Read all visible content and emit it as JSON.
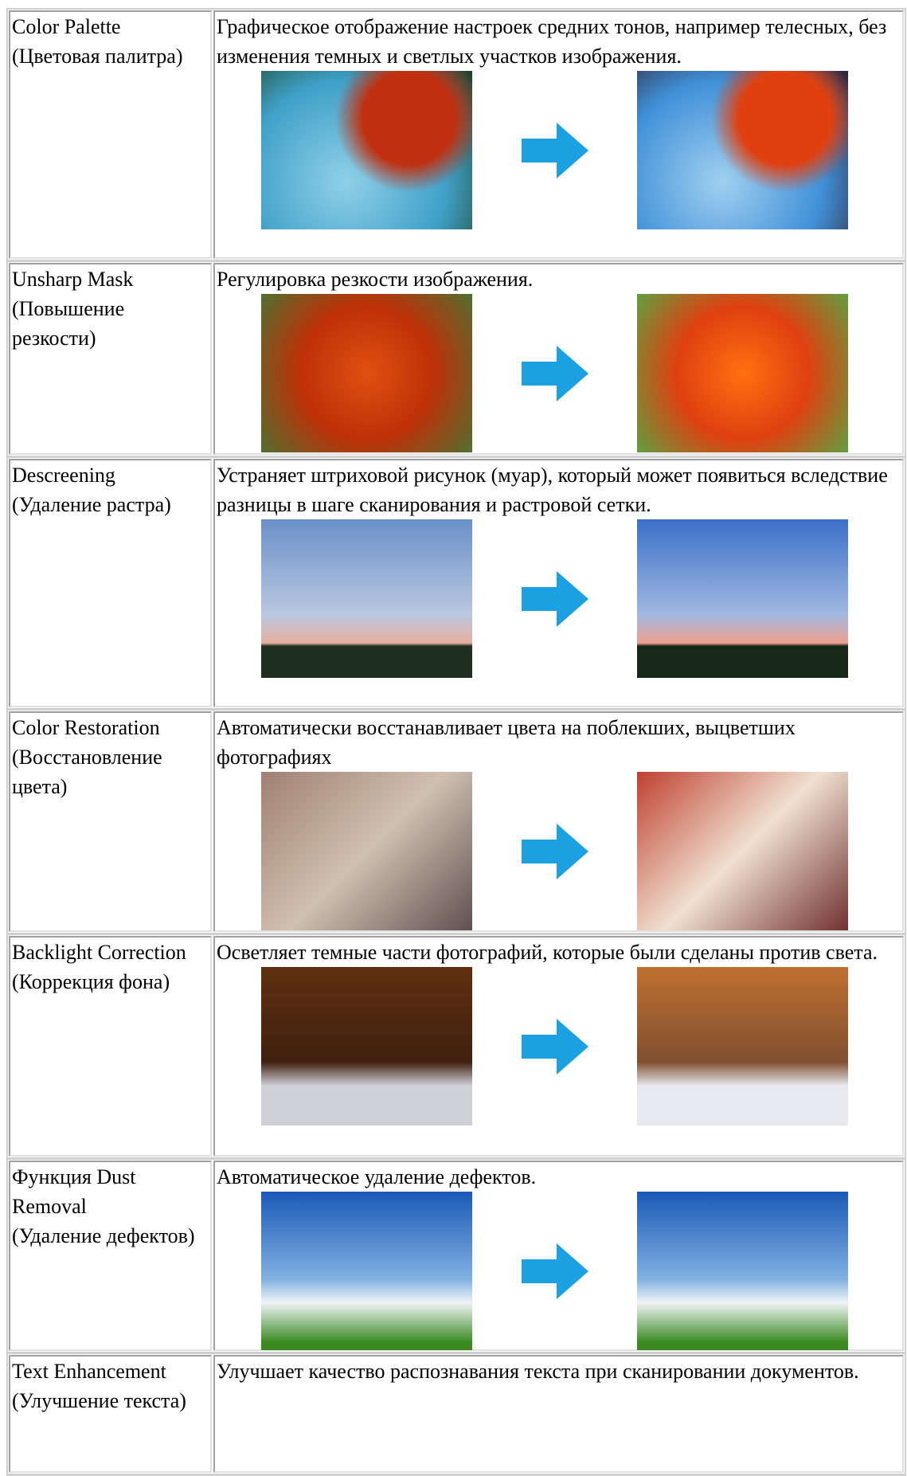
{
  "table": {
    "rows": [
      {
        "name": "Color Palette",
        "name_ru": "(Цветовая палитра)",
        "description": "Графическое отображение настроек средних тонов, например телесных, без изменения темных и светлых участков изображения."
      },
      {
        "name": "Unsharp Mask",
        "name_ru": "(Повышение резкости)",
        "description": "Регулировка резкости изображения."
      },
      {
        "name": "Descreening",
        "name_ru": "(Удаление растра)",
        "description": "Устраняет штриховой рисунок (муар), который может появиться вследствие разницы в шаге сканирования и растровой сетки."
      },
      {
        "name": "Color Restoration",
        "name_ru": "(Восстановление цвета)",
        "description": "Автоматически восстанавливает цвета на поблекших, выцветших фотографиях"
      },
      {
        "name": "Backlight Correction",
        "name_ru": "(Коррекция фона)",
        "description": "Осветляет темные части фотографий, которые были сделаны против света."
      },
      {
        "name": "Функция Dust Removal",
        "name_ru": "(Удаление дефектов)",
        "description": "Автоматическое удаление дефектов."
      },
      {
        "name": "Text Enhancement",
        "name_ru": "(Улучшение текста)",
        "description": "Улучшает качество распознавания текста при сканировании документов."
      }
    ]
  }
}
